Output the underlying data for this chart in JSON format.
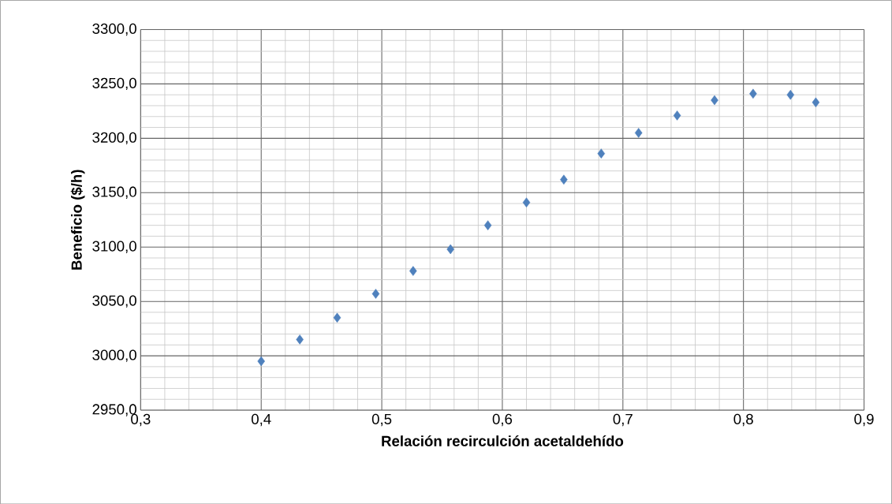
{
  "chart_data": {
    "type": "scatter",
    "xlabel": "Relación recirculción acetaldehído",
    "ylabel": "Beneficio ($/h)",
    "x": [
      0.4,
      0.432,
      0.463,
      0.495,
      0.526,
      0.557,
      0.588,
      0.62,
      0.651,
      0.682,
      0.713,
      0.745,
      0.776,
      0.808,
      0.839,
      0.86
    ],
    "series": [
      {
        "color": "#4f81bd",
        "values": [
          2995,
          3015,
          3035,
          3057,
          3078,
          3098,
          3120,
          3141,
          3162,
          3186,
          3205,
          3221,
          3235,
          3241,
          3240,
          3233
        ]
      }
    ],
    "marker": "diamond",
    "grid": true,
    "xlim": [
      0.3,
      0.9
    ],
    "ylim": [
      2950,
      3300
    ],
    "xticks": [
      {
        "value": 0.3,
        "label": "0,3"
      },
      {
        "value": 0.4,
        "label": "0,4"
      },
      {
        "value": 0.5,
        "label": "0,5"
      },
      {
        "value": 0.6,
        "label": "0,6"
      },
      {
        "value": 0.7,
        "label": "0,7"
      },
      {
        "value": 0.8,
        "label": "0,8"
      },
      {
        "value": 0.9,
        "label": "0,9"
      }
    ],
    "yticks": [
      {
        "value": 2950,
        "label": "2950,0"
      },
      {
        "value": 3000,
        "label": "3000,0"
      },
      {
        "value": 3050,
        "label": "3050,0"
      },
      {
        "value": 3100,
        "label": "3100,0"
      },
      {
        "value": 3150,
        "label": "3150,0"
      },
      {
        "value": 3200,
        "label": "3200,0"
      },
      {
        "value": 3250,
        "label": "3250,0"
      },
      {
        "value": 3300,
        "label": "3300,0"
      }
    ]
  }
}
